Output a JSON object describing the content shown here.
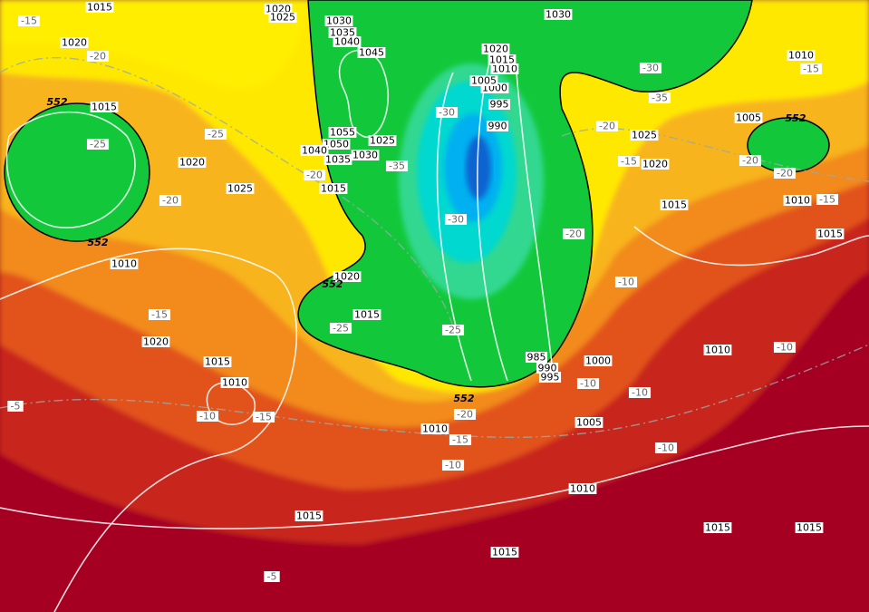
{
  "isobar_labels": [
    "1015",
    "1020",
    "1020",
    "1025",
    "1030",
    "1035",
    "1040",
    "1045",
    "1015",
    "1020",
    "1025",
    "1010",
    "1055",
    "1050",
    "1040",
    "1035",
    "1030",
    "1025",
    "1015",
    "1020",
    "1015",
    "1020",
    "1015",
    "1010",
    "1010",
    "1015",
    "1015",
    "1010",
    "1005",
    "1000",
    "990",
    "995",
    "985",
    "995",
    "990",
    "1000",
    "1005",
    "1010",
    "1015",
    "1020",
    "1030",
    "1025",
    "1020",
    "1015",
    "1010",
    "1005",
    "1010",
    "1015",
    "1010",
    "1015",
    "1015"
  ],
  "temperature_labels": [
    "-15",
    "-20",
    "-25",
    "-25",
    "-20",
    "-20",
    "-30",
    "-35",
    "-30",
    "-25",
    "-25",
    "-15",
    "-10",
    "-15",
    "-5",
    "-20",
    "-15",
    "-10",
    "-5",
    "-30",
    "-35",
    "-20",
    "-15",
    "-15",
    "-20",
    "-20",
    "-15",
    "-20",
    "-10",
    "-10",
    "-10",
    "-10",
    "-10"
  ],
  "height_labels": [
    "552",
    "552",
    "552",
    "552",
    "552"
  ]
}
